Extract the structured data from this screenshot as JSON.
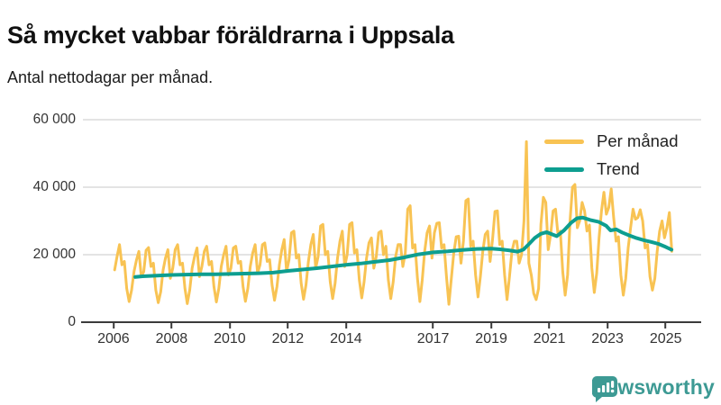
{
  "header": {
    "title": "Så mycket vabbar föräldrarna i Uppsala",
    "subtitle": "Antal nettodagar per månad."
  },
  "footer": {
    "brand": "Newsworthy"
  },
  "colors": {
    "per_month_line": "#f8c353",
    "trend_line": "#0d9e90",
    "grid": "#dcdcdc",
    "axis": "#3b3b3b",
    "brand_teal": "#3d9a94"
  },
  "chart_data": {
    "type": "line",
    "title": "Så mycket vabbar föräldrarna i Uppsala",
    "subtitle": "Antal nettodagar per månad.",
    "xlabel": "",
    "ylabel": "Antal nettodagar per månad",
    "grid": true,
    "legend_position": "top-right",
    "x_domain": [
      2004.95,
      2026.22
    ],
    "y_domain": [
      0,
      60000
    ],
    "x_ticks": [
      2006,
      2008,
      2010,
      2012,
      2014,
      2017,
      2019,
      2021,
      2023,
      2025
    ],
    "x_tick_labels": [
      "2006",
      "2008",
      "2010",
      "2012",
      "2014",
      "2017",
      "2019",
      "2021",
      "2023",
      "2025"
    ],
    "y_ticks": [
      0,
      20000,
      40000,
      60000
    ],
    "y_tick_labels": [
      "0",
      "20 000",
      "40 000",
      "60 000"
    ],
    "series": [
      {
        "name": "Per månad",
        "color": "#f8c353",
        "start": "2006-01",
        "end": "2025-03",
        "values": [
          15500,
          19500,
          23000,
          17000,
          18000,
          10000,
          6100,
          9500,
          15000,
          18400,
          21000,
          13500,
          15000,
          21300,
          22100,
          16500,
          17500,
          9500,
          5800,
          9000,
          15500,
          19000,
          21500,
          13000,
          16000,
          21500,
          23000,
          17000,
          17500,
          10000,
          5500,
          9500,
          16000,
          19500,
          22000,
          13500,
          16500,
          21000,
          22500,
          17000,
          18000,
          10500,
          6000,
          10000,
          16500,
          20000,
          22500,
          14000,
          16000,
          22000,
          22500,
          17500,
          18000,
          10500,
          6200,
          10000,
          16500,
          20500,
          23000,
          14500,
          17000,
          23000,
          23500,
          18000,
          18500,
          11000,
          6500,
          10500,
          17000,
          21500,
          24500,
          15000,
          18500,
          26500,
          27000,
          19000,
          20000,
          11500,
          6800,
          11000,
          18000,
          23000,
          26000,
          16000,
          19500,
          28500,
          29000,
          20000,
          21000,
          12000,
          7000,
          11500,
          19000,
          24000,
          27000,
          16500,
          20000,
          29000,
          29500,
          20500,
          21500,
          12500,
          7200,
          12000,
          19000,
          23500,
          25000,
          16000,
          19500,
          26500,
          27000,
          20000,
          22500,
          12500,
          7000,
          12000,
          19500,
          23000,
          23000,
          16500,
          20500,
          33500,
          34500,
          22000,
          23000,
          13000,
          6100,
          12500,
          21000,
          26500,
          28500,
          19000,
          26500,
          29300,
          29500,
          22000,
          23000,
          13500,
          5300,
          13000,
          20500,
          25300,
          25500,
          17500,
          24000,
          36000,
          36500,
          22500,
          24000,
          14000,
          7500,
          13500,
          21000,
          26000,
          27000,
          18000,
          24500,
          32800,
          33000,
          23000,
          24000,
          14000,
          6700,
          13500,
          21000,
          24000,
          24000,
          17500,
          20000,
          30000,
          53500,
          17500,
          14000,
          8500,
          6700,
          10000,
          29000,
          37000,
          35500,
          21500,
          26000,
          33000,
          33500,
          26000,
          27000,
          15000,
          8000,
          14000,
          30000,
          40000,
          40800,
          28000,
          30000,
          35500,
          33000,
          27000,
          28800,
          16000,
          8800,
          14500,
          25000,
          33000,
          38500,
          32000,
          34000,
          39500,
          31000,
          24000,
          25300,
          14000,
          8000,
          13000,
          22000,
          28000,
          33500,
          30500,
          31000,
          33300,
          30000,
          22000,
          23000,
          13500,
          9500,
          13000,
          21000,
          27000,
          30000,
          25000,
          28000,
          32500,
          21000
        ]
      },
      {
        "name": "Trend",
        "color": "#0d9e90",
        "points": [
          [
            2006.75,
            13400
          ],
          [
            2007,
            13600
          ],
          [
            2007.5,
            13800
          ],
          [
            2008,
            14000
          ],
          [
            2008.5,
            14100
          ],
          [
            2009,
            14200
          ],
          [
            2009.5,
            14200
          ],
          [
            2010,
            14300
          ],
          [
            2010.5,
            14400
          ],
          [
            2011,
            14500
          ],
          [
            2011.5,
            14700
          ],
          [
            2012,
            15200
          ],
          [
            2012.5,
            15600
          ],
          [
            2013,
            16000
          ],
          [
            2013.5,
            16500
          ],
          [
            2014,
            17000
          ],
          [
            2014.5,
            17400
          ],
          [
            2015,
            17900
          ],
          [
            2015.5,
            18400
          ],
          [
            2016,
            19200
          ],
          [
            2016.5,
            20100
          ],
          [
            2017,
            20700
          ],
          [
            2017.5,
            21000
          ],
          [
            2018,
            21400
          ],
          [
            2018.5,
            21700
          ],
          [
            2019,
            21800
          ],
          [
            2019.3,
            21600
          ],
          [
            2019.6,
            21300
          ],
          [
            2019.9,
            20900
          ],
          [
            2020.1,
            21500
          ],
          [
            2020.3,
            23200
          ],
          [
            2020.5,
            25000
          ],
          [
            2020.7,
            26200
          ],
          [
            2020.9,
            26700
          ],
          [
            2021.1,
            26000
          ],
          [
            2021.25,
            25500
          ],
          [
            2021.5,
            27200
          ],
          [
            2021.75,
            29500
          ],
          [
            2021.95,
            30800
          ],
          [
            2022.15,
            31000
          ],
          [
            2022.4,
            30300
          ],
          [
            2022.7,
            29700
          ],
          [
            2022.95,
            28600
          ],
          [
            2023.1,
            27200
          ],
          [
            2023.3,
            27500
          ],
          [
            2023.5,
            26600
          ],
          [
            2023.75,
            25700
          ],
          [
            2024,
            24900
          ],
          [
            2024.25,
            24300
          ],
          [
            2024.5,
            23800
          ],
          [
            2024.75,
            23200
          ],
          [
            2025,
            22300
          ],
          [
            2025.2,
            21500
          ]
        ]
      }
    ]
  }
}
